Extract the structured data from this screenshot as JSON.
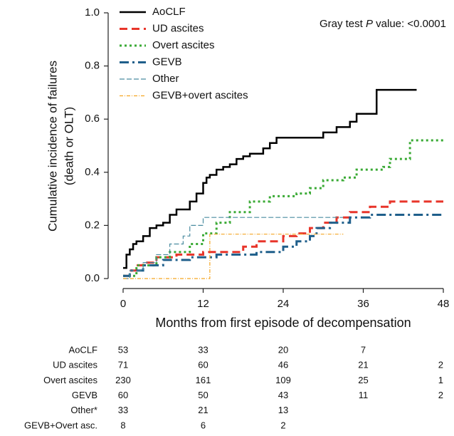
{
  "chart_data": {
    "type": "step",
    "annotation": {
      "prefix": "Gray test ",
      "italic": "P",
      "suffix": " value: <0.0001"
    },
    "y_label": [
      "Cumulative incidence of failures",
      "(death or OLT)"
    ],
    "x_label": "Months from first episode of decompensation",
    "xlim": [
      0,
      48
    ],
    "xticks": [
      0,
      12,
      24,
      36,
      48
    ],
    "ylim": [
      0,
      1
    ],
    "yticks": [
      {
        "value": 0,
        "label": "0.0"
      },
      0.2,
      0.4,
      0.6,
      0.8,
      {
        "value": 1,
        "label": "1.0"
      }
    ],
    "legend": "top-left",
    "series": [
      {
        "name": "AoCLF",
        "color": "#000000",
        "x": [
          0,
          0.5,
          1,
          1.5,
          2,
          3,
          4,
          5,
          6,
          7,
          8,
          10,
          11,
          12,
          12.5,
          13,
          14,
          15,
          16,
          17,
          18,
          19,
          21,
          22,
          23,
          24,
          30,
          31,
          32,
          33,
          34,
          35,
          36,
          38,
          44
        ],
        "values": [
          0.04,
          0.09,
          0.11,
          0.13,
          0.14,
          0.16,
          0.19,
          0.2,
          0.21,
          0.24,
          0.26,
          0.29,
          0.32,
          0.36,
          0.38,
          0.39,
          0.41,
          0.42,
          0.43,
          0.45,
          0.46,
          0.47,
          0.49,
          0.51,
          0.53,
          0.53,
          0.55,
          0.55,
          0.57,
          0.57,
          0.59,
          0.62,
          0.62,
          0.71,
          0.71
        ]
      },
      {
        "name": "UD ascites",
        "color": "#e8352a",
        "x": [
          0,
          1,
          2,
          3,
          5,
          8,
          12,
          16,
          18,
          20,
          24,
          26,
          28,
          30,
          32,
          34,
          37,
          40,
          48
        ],
        "values": [
          0.01,
          0.03,
          0.05,
          0.06,
          0.08,
          0.09,
          0.1,
          0.1,
          0.12,
          0.14,
          0.16,
          0.17,
          0.19,
          0.21,
          0.23,
          0.25,
          0.27,
          0.29,
          0.29
        ]
      },
      {
        "name": "Overt ascites",
        "color": "#3aaa35",
        "x": [
          0,
          2,
          5,
          7,
          10,
          12,
          14,
          16,
          19,
          22,
          26,
          28,
          30,
          33,
          35,
          39,
          40,
          43,
          48
        ],
        "values": [
          0.01,
          0.05,
          0.08,
          0.1,
          0.13,
          0.17,
          0.21,
          0.25,
          0.29,
          0.31,
          0.32,
          0.34,
          0.37,
          0.38,
          0.41,
          0.42,
          0.45,
          0.52,
          0.52
        ]
      },
      {
        "name": "GEVB",
        "color": "#1f5f8b",
        "x": [
          0,
          1,
          3,
          6,
          10,
          14,
          20,
          24,
          26,
          28,
          29,
          31,
          34,
          37,
          48
        ],
        "values": [
          0.01,
          0.03,
          0.05,
          0.07,
          0.08,
          0.09,
          0.1,
          0.12,
          0.14,
          0.16,
          0.19,
          0.21,
          0.23,
          0.24,
          0.24
        ]
      },
      {
        "name": "Other",
        "color": "#4a8ca0",
        "x": [
          0,
          1,
          3,
          5,
          7,
          9,
          10,
          12,
          33
        ],
        "values": [
          0,
          0.03,
          0.06,
          0.09,
          0.13,
          0.16,
          0.2,
          0.23,
          0.23
        ]
      },
      {
        "name": "GEVB+overt ascites",
        "color": "#f5a623",
        "x": [
          0,
          1,
          13,
          33
        ],
        "values": [
          0,
          0,
          0.167,
          0.167
        ]
      }
    ],
    "risk_table": {
      "rows": [
        {
          "label": "AoCLF",
          "values": [
            53,
            33,
            20,
            7,
            null
          ]
        },
        {
          "label": "UD ascites",
          "values": [
            71,
            60,
            46,
            21,
            2
          ]
        },
        {
          "label": "Overt ascites",
          "values": [
            230,
            161,
            109,
            25,
            1
          ]
        },
        {
          "label": "GEVB",
          "values": [
            60,
            50,
            43,
            11,
            2
          ]
        },
        {
          "label": "Other*",
          "values": [
            33,
            21,
            13,
            null,
            null
          ]
        },
        {
          "label": "GEVB+Overt asc.",
          "values": [
            8,
            6,
            2,
            null,
            null
          ]
        }
      ]
    }
  }
}
